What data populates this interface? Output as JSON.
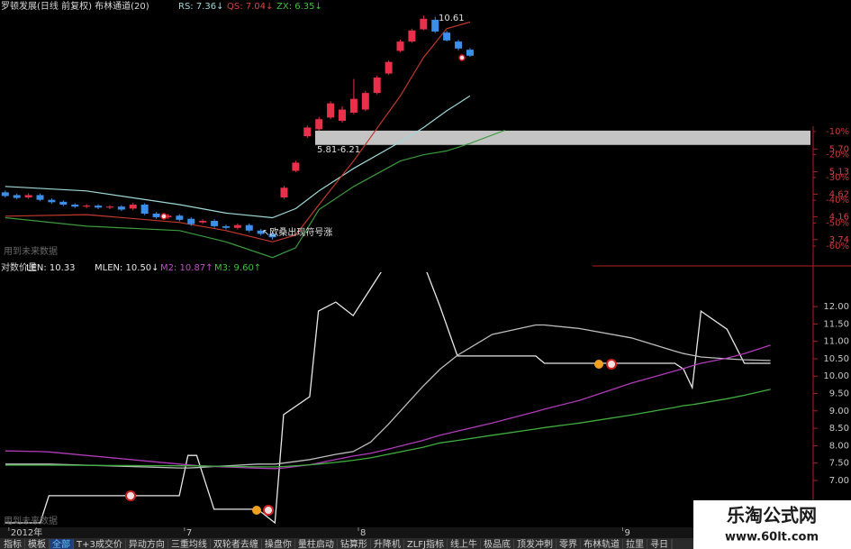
{
  "chart_data": [
    {
      "type": "candlestick",
      "title": "罗顿发展(日线 前复权) 布林通道(20)",
      "x": [
        0,
        1,
        2,
        3,
        4,
        5,
        6,
        7,
        8,
        9,
        10,
        11,
        12,
        13,
        14,
        15,
        16,
        17,
        18,
        19,
        20,
        21,
        22,
        23,
        24,
        25,
        26,
        27,
        28,
        29,
        30,
        31,
        32,
        33,
        34,
        35,
        36,
        37,
        38,
        39,
        40
      ],
      "open": [
        4.66,
        4.6,
        4.55,
        4.6,
        4.5,
        4.46,
        4.4,
        4.36,
        4.38,
        4.34,
        4.36,
        4.32,
        4.4,
        4.22,
        4.15,
        4.18,
        4.12,
        4.05,
        4.08,
        3.98,
        3.95,
        4.0,
        3.9,
        3.84,
        4.55,
        5.15,
        6.05,
        6.25,
        6.6,
        6.5,
        6.75,
        6.85,
        7.4,
        8.1,
        9.0,
        9.4,
        9.95,
        10.4,
        9.8,
        9.4,
        9.05
      ],
      "high": [
        4.7,
        4.63,
        4.64,
        4.63,
        4.53,
        4.49,
        4.43,
        4.41,
        4.41,
        4.39,
        4.39,
        4.44,
        4.43,
        4.25,
        4.21,
        4.21,
        4.15,
        4.11,
        4.11,
        4.01,
        4.03,
        4.03,
        3.93,
        3.87,
        4.8,
        5.4,
        6.36,
        6.62,
        7.12,
        6.95,
        7.9,
        7.48,
        8.02,
        8.62,
        9.48,
        9.98,
        10.61,
        10.55,
        9.88,
        9.48,
        9.12
      ],
      "low": [
        4.55,
        4.51,
        4.52,
        4.47,
        4.42,
        4.37,
        4.33,
        4.33,
        4.31,
        4.31,
        4.27,
        4.29,
        4.19,
        4.12,
        4.12,
        4.07,
        3.99,
        4.02,
        3.95,
        3.92,
        3.92,
        3.87,
        3.81,
        3.74,
        4.52,
        5.12,
        6.0,
        6.2,
        6.55,
        6.45,
        6.7,
        6.8,
        7.35,
        8.05,
        8.95,
        9.35,
        9.9,
        9.78,
        9.4,
        9.02,
        8.75
      ],
      "close": [
        4.58,
        4.54,
        4.6,
        4.5,
        4.45,
        4.4,
        4.36,
        4.38,
        4.34,
        4.36,
        4.3,
        4.4,
        4.22,
        4.15,
        4.18,
        4.1,
        4.02,
        4.08,
        3.98,
        3.95,
        4.0,
        3.9,
        3.84,
        3.78,
        4.76,
        5.35,
        6.3,
        6.55,
        7.05,
        6.85,
        7.2,
        7.4,
        7.95,
        8.55,
        9.4,
        9.9,
        10.45,
        9.85,
        9.45,
        9.1,
        8.8
      ],
      "up_color": "#e8304a",
      "down_color": "#3b8fe8",
      "bands": {
        "x": [
          0,
          7,
          15,
          19,
          23,
          25,
          27,
          30,
          34,
          36,
          38,
          40,
          43
        ],
        "series": [
          {
            "name": "RS: 7.36↓",
            "color": "#9fd8d8",
            "values": [
              4.79,
              4.69,
              4.4,
              4.23,
              4.14,
              4.32,
              4.69,
              5.21,
              5.89,
              6.3,
              6.81,
              7.3,
              null
            ]
          },
          {
            "name": "QS: 7.04↓",
            "color": "#c0392b",
            "values": [
              4.17,
              4.2,
              4.05,
              3.9,
              3.7,
              3.82,
              4.4,
              5.4,
              7.3,
              8.73,
              9.98,
              10.29,
              null
            ]
          },
          {
            "name": "ZX: 6.35↓",
            "color": "#3c9a3c",
            "values": [
              4.14,
              3.98,
              3.9,
              3.7,
              3.44,
              3.6,
              4.3,
              4.79,
              5.39,
              5.55,
              5.65,
              5.85,
              6.22
            ]
          }
        ]
      },
      "zone": {
        "low": 5.81,
        "high": 6.21,
        "label": "5.81-6.21",
        "color": "#c4c4c4"
      },
      "annotations": [
        "↖欧桑出现符号涨",
        "用到未来数据"
      ],
      "log_scale": true,
      "xlim": [
        -0.45,
        69.3
      ],
      "ylim": [
        3.35,
        10.8
      ],
      "yticks": [
        {
          "value": 5.7,
          "label": "5.70"
        },
        5.13,
        4.62,
        4.16,
        3.74
      ],
      "y2lim": [
        -67.5,
        42.4
      ],
      "y2ticks": [
        {
          "value": -10,
          "label": "-10%"
        },
        {
          "value": -20,
          "label": "-20%"
        },
        {
          "value": -30,
          "label": "-30%"
        },
        {
          "value": -40,
          "label": "-40%"
        },
        {
          "value": -50,
          "label": "-50%"
        },
        {
          "value": -60,
          "label": "-60%"
        }
      ]
    },
    {
      "type": "line",
      "title": "对数价量",
      "x": [
        0,
        4,
        5,
        20,
        21,
        22,
        24,
        29,
        31,
        32,
        35,
        36,
        38,
        40,
        42,
        44,
        48,
        50,
        52,
        56,
        61,
        62,
        66,
        72,
        77,
        78,
        79,
        80,
        83,
        85,
        88
      ],
      "series": [
        {
          "name": "LEN: 10.33",
          "color": "#e8e8e8",
          "values": [
            5.78,
            5.78,
            6.56,
            6.56,
            7.72,
            7.72,
            6.17,
            6.17,
            5.78,
            8.89,
            9.41,
            11.87,
            12.13,
            11.74,
            12.52,
            13.3,
            13.3,
            12.0,
            10.58,
            10.58,
            10.58,
            10.37,
            10.37,
            10.37,
            10.37,
            10.2,
            9.67,
            11.87,
            11.35,
            10.37,
            10.37
          ]
        },
        {
          "name": "MLEN: 10.50↓",
          "color": "#bdbdbd",
          "values": [
            7.47,
            7.47,
            7.47,
            7.36,
            7.36,
            7.37,
            7.4,
            7.47,
            7.47,
            7.5,
            7.6,
            7.65,
            7.75,
            7.83,
            8.1,
            8.6,
            9.7,
            10.2,
            10.6,
            11.2,
            11.47,
            11.47,
            11.37,
            11.1,
            10.72,
            10.65,
            10.6,
            10.55,
            10.5,
            10.47,
            10.45
          ]
        },
        {
          "name": "M2: 10.87↑",
          "color": "#b03ab8",
          "values": [
            7.85,
            7.83,
            7.82,
            7.47,
            7.45,
            7.43,
            7.4,
            7.35,
            7.34,
            7.36,
            7.45,
            7.5,
            7.6,
            7.7,
            7.78,
            7.9,
            8.15,
            8.3,
            8.42,
            8.65,
            8.98,
            9.05,
            9.3,
            9.8,
            10.15,
            10.22,
            10.3,
            10.37,
            10.52,
            10.65,
            10.89
          ]
        },
        {
          "name": "M3: 9.60↑",
          "color": "#3fae3f",
          "values": [
            7.44,
            7.44,
            7.44,
            7.42,
            7.42,
            7.42,
            7.41,
            7.39,
            7.39,
            7.4,
            7.45,
            7.47,
            7.52,
            7.58,
            7.65,
            7.75,
            7.95,
            8.08,
            8.15,
            8.3,
            8.48,
            8.52,
            8.65,
            8.88,
            9.1,
            9.15,
            9.18,
            9.22,
            9.35,
            9.45,
            9.62
          ]
        }
      ],
      "annotations": [
        "用到未来数据"
      ],
      "xlim": [
        -0.62,
        92.6
      ],
      "xticks": [
        {
          "value": 0.4,
          "label": "2012年"
        },
        {
          "value": 20.6,
          "label": "7"
        },
        {
          "value": 40.6,
          "label": "8"
        },
        {
          "value": 71,
          "label": "9"
        }
      ],
      "ylim": [
        5.65,
        13.04
      ],
      "yticks": [
        {
          "value": 12,
          "label": "12.00"
        },
        {
          "value": 11.5,
          "label": "11.50"
        },
        {
          "value": 11,
          "label": "11.00"
        },
        {
          "value": 10.5,
          "label": "10.50"
        },
        {
          "value": 10,
          "label": "10.00"
        },
        {
          "value": 9.5,
          "label": "9.50"
        },
        {
          "value": 9,
          "label": "9.00"
        },
        {
          "value": 8.5,
          "label": "8.50"
        },
        {
          "value": 8,
          "label": "8.00"
        },
        {
          "value": 7.5,
          "label": "7.50"
        },
        {
          "value": 7,
          "label": "7.00"
        }
      ]
    }
  ],
  "tabs": {
    "items": [
      "指标",
      "模板",
      "全部",
      "T+3成交价",
      "异动方向",
      "三重均线",
      "双轮者去缠",
      "操盘你",
      "量柱启动",
      "钻算形",
      "升降机",
      "ZLFJ指标",
      "线上牛",
      "极品底",
      "顶发冲刺",
      "零界",
      "布林轨道",
      "拉里",
      "寻日"
    ],
    "active": 2
  },
  "watermark": {
    "title": "乐淘公式网",
    "url": "www.60lt.com"
  }
}
